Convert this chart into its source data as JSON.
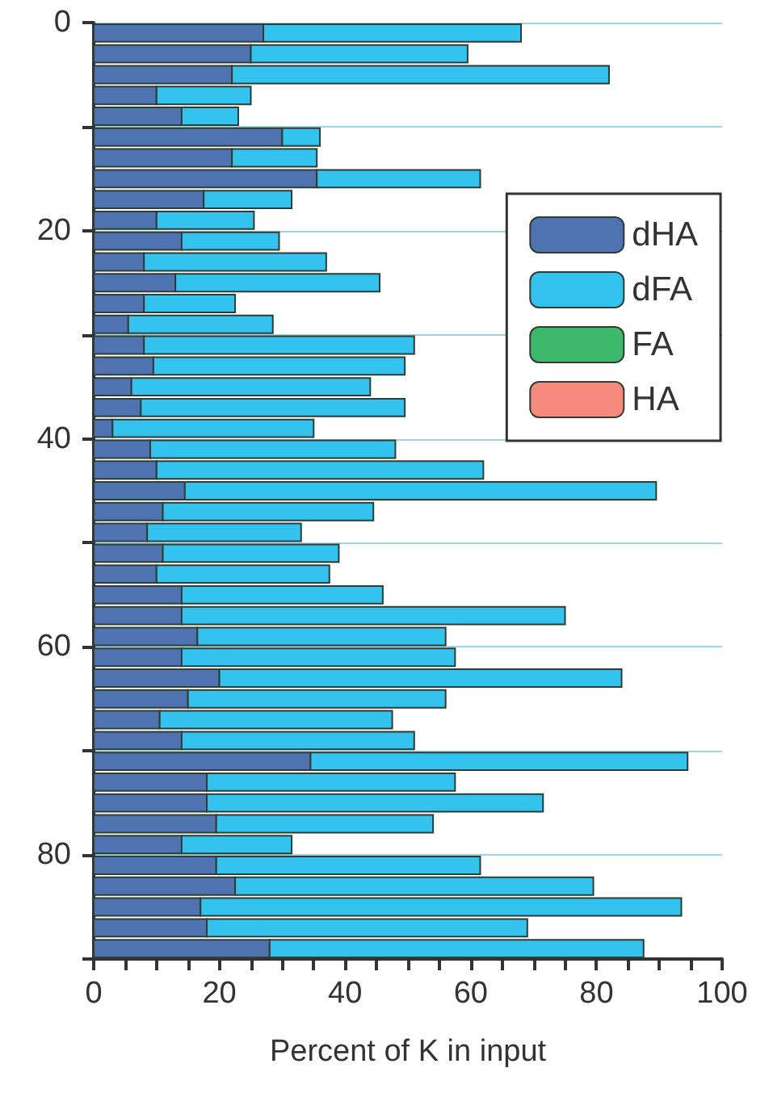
{
  "chart_data": {
    "type": "bar",
    "orientation": "horizontal",
    "stacked": true,
    "xlabel": "Percent of K in input",
    "x": [
      1,
      3,
      5,
      7,
      9,
      11,
      13,
      15,
      17,
      19,
      21,
      23,
      25,
      27,
      29,
      31,
      33,
      35,
      37,
      39,
      41,
      43,
      45,
      47,
      49,
      51,
      53,
      55,
      57,
      59,
      61,
      63,
      65,
      67,
      69,
      71,
      73,
      75,
      77,
      79,
      81,
      83,
      85,
      87,
      89
    ],
    "series": [
      {
        "name": "dHA",
        "color": "#4f72b0",
        "values": [
          27,
          25,
          22,
          10,
          14,
          30,
          22,
          35.5,
          17.5,
          10,
          14,
          8,
          13,
          8,
          5.5,
          8,
          9.5,
          6,
          7.5,
          3,
          9,
          10,
          14.5,
          11,
          8.5,
          11,
          10,
          14,
          14,
          16.5,
          14,
          20,
          15,
          10.5,
          14,
          34.5,
          18,
          18,
          19.5,
          14,
          19.5,
          22.5,
          17,
          18,
          28
        ]
      },
      {
        "name": "dFA",
        "color": "#33c3ee",
        "values": [
          41,
          34.5,
          60,
          15,
          9,
          6,
          13.5,
          26,
          14,
          15.5,
          15.5,
          29,
          32.5,
          14.5,
          23,
          43,
          40,
          38,
          42,
          32,
          39,
          52,
          75,
          33.5,
          24.5,
          28,
          27.5,
          32,
          61,
          39.5,
          43.5,
          64,
          41,
          37,
          37,
          60,
          39.5,
          53.5,
          34.5,
          17.5,
          42,
          57,
          76.5,
          51,
          59.5
        ]
      },
      {
        "name": "FA",
        "color": "#3cb96a",
        "values": [
          null,
          null,
          null,
          null,
          null,
          null,
          null,
          null,
          null,
          null,
          null,
          null,
          null,
          null,
          null,
          null,
          null,
          null,
          null,
          null,
          null,
          null,
          null,
          null,
          null,
          null,
          null,
          null,
          null,
          null,
          null,
          null,
          null,
          null,
          null,
          null,
          null,
          null,
          null,
          null,
          null,
          null,
          null,
          null,
          null
        ]
      },
      {
        "name": "HA",
        "color": "#f58a7d",
        "values": [
          null,
          null,
          null,
          null,
          null,
          null,
          null,
          null,
          null,
          null,
          null,
          null,
          null,
          null,
          null,
          null,
          null,
          null,
          null,
          null,
          null,
          null,
          null,
          null,
          null,
          null,
          null,
          null,
          null,
          null,
          null,
          null,
          null,
          null,
          null,
          null,
          null,
          null,
          null,
          null,
          null,
          null,
          null,
          null,
          null
        ]
      }
    ],
    "xlim": [
      0,
      100
    ],
    "xticks": [
      0,
      {
        "value": 5,
        "label": null
      },
      {
        "value": 10,
        "label": null
      },
      {
        "value": 15,
        "label": null
      },
      20,
      {
        "value": 25,
        "label": null
      },
      {
        "value": 30,
        "label": null
      },
      {
        "value": 35,
        "label": null
      },
      40,
      {
        "value": 45,
        "label": null
      },
      {
        "value": 50,
        "label": null
      },
      {
        "value": 55,
        "label": null
      },
      60,
      {
        "value": 65,
        "label": null
      },
      {
        "value": 70,
        "label": null
      },
      {
        "value": 75,
        "label": null
      },
      80,
      {
        "value": 85,
        "label": null
      },
      {
        "value": 90,
        "label": null
      },
      {
        "value": 95,
        "label": null
      },
      100
    ],
    "ylim": [
      90,
      0
    ],
    "yticks": [
      0,
      {
        "value": 10,
        "label": null
      },
      20,
      {
        "value": 30,
        "label": null
      },
      40,
      {
        "value": 50,
        "label": null
      },
      60,
      {
        "value": 70,
        "label": null
      },
      80,
      {
        "value": 90,
        "label": null
      }
    ],
    "grid": "y",
    "legend": "top right"
  }
}
